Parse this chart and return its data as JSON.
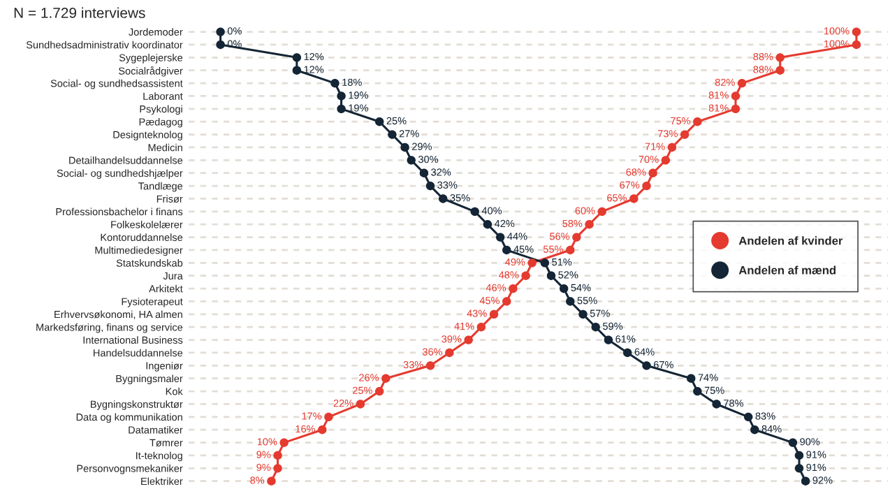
{
  "chart_data": {
    "type": "line",
    "title": "N = 1.729 interviews",
    "orientation": "horizontal",
    "categories": [
      "Jordemoder",
      "Sundhedsadministrativ koordinator",
      "Sygeplejerske",
      "Socialrådgiver",
      "Social- og sundhedsassistent",
      "Laborant",
      "Psykologi",
      "Pædagog",
      "Designteknolog",
      "Medicin",
      "Detailhandelsuddannelse",
      "Social- og sundhedshjælper",
      "Tandlæge",
      "Frisør",
      "Professionsbachelor i finans",
      "Folkeskolelærer",
      "Kontoruddannelse",
      "Multimediedesigner",
      "Statskundskab",
      "Jura",
      "Arkitekt",
      "Fysioterapeut",
      "Erhvervsøkonomi, HA almen",
      "Markedsføring, finans og service",
      "International Business",
      "Handelsuddannelse",
      "Ingeniør",
      "Bygningsmaler",
      "Kok",
      "Bygningskonstruktør",
      "Data og kommunikation",
      "Datamatiker",
      "Tømrer",
      "It-teknolog",
      "Personvognsmekaniker",
      "Elektriker"
    ],
    "series": [
      {
        "name": "Andelen af kvinder",
        "color": "#e53a2f",
        "values": [
          100,
          100,
          88,
          88,
          82,
          81,
          81,
          75,
          73,
          71,
          70,
          68,
          67,
          65,
          60,
          58,
          56,
          55,
          49,
          48,
          46,
          45,
          43,
          41,
          39,
          36,
          33,
          26,
          25,
          22,
          17,
          16,
          10,
          9,
          9,
          8
        ],
        "value_labels": [
          "100%",
          "100%",
          "88%",
          "88%",
          "82%",
          "81%",
          "81%",
          "75%",
          "73%",
          "71%",
          "70%",
          "68%",
          "67%",
          "65%",
          "60%",
          "58%",
          "56%",
          "55%",
          "49%",
          "48%",
          "46%",
          "45%",
          "43%",
          "41%",
          "39%",
          "36%",
          "33%",
          "26%",
          "25%",
          "22%",
          "17%",
          "16%",
          "10%",
          "9%",
          "9%",
          "8%"
        ]
      },
      {
        "name": "Andelen af mænd",
        "color": "#142535",
        "values": [
          0,
          0,
          12,
          12,
          18,
          19,
          19,
          25,
          27,
          29,
          30,
          32,
          33,
          35,
          40,
          42,
          44,
          45,
          51,
          52,
          54,
          55,
          57,
          59,
          61,
          64,
          67,
          74,
          75,
          78,
          83,
          84,
          90,
          91,
          91,
          92
        ],
        "value_labels": [
          "0%",
          "0%",
          "12%",
          "12%",
          "18%",
          "19%",
          "19%",
          "25%",
          "27%",
          "29%",
          "30%",
          "32%",
          "33%",
          "35%",
          "40%",
          "42%",
          "44%",
          "45%",
          "51%",
          "52%",
          "54%",
          "55%",
          "57%",
          "59%",
          "61%",
          "64%",
          "67%",
          "74%",
          "75%",
          "78%",
          "83%",
          "84%",
          "90%",
          "91%",
          "91%",
          "92%"
        ]
      }
    ],
    "xlim": [
      -5,
      105
    ],
    "tick_labels": "y",
    "grid": "y",
    "legend": "right",
    "marker": "circle",
    "line_style": "solid"
  }
}
